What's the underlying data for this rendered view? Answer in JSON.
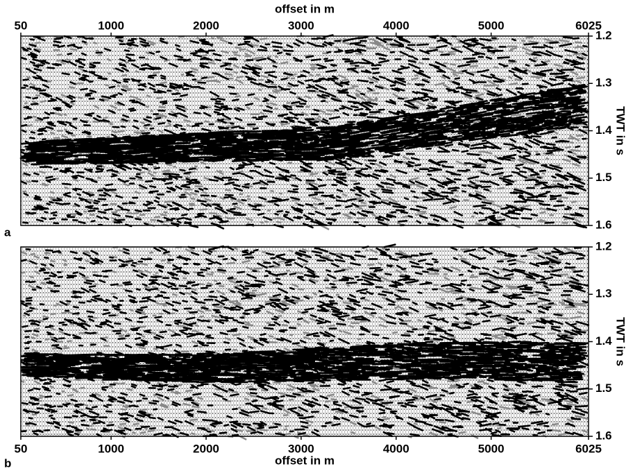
{
  "chart_data": [
    {
      "type": "seismic",
      "panel_label": "a",
      "xlabel": "offset in m",
      "ylabel": "TWT in s",
      "x_axis_position": "top",
      "xlim": [
        50,
        6025
      ],
      "xticks": [
        50,
        1000,
        2000,
        3000,
        4000,
        5000,
        6025
      ],
      "ylim": [
        1.2,
        1.6
      ],
      "y_reversed": true,
      "yticks": [
        1.2,
        1.3,
        1.4,
        1.5,
        1.6
      ]
    },
    {
      "type": "seismic",
      "panel_label": "b",
      "xlabel": "offset in m",
      "ylabel": "TWT in s",
      "x_axis_position": "bottom",
      "xlim": [
        50,
        6025
      ],
      "xticks": [
        50,
        1000,
        2000,
        3000,
        4000,
        5000,
        6025
      ],
      "ylim": [
        1.2,
        1.6
      ],
      "y_reversed": true,
      "yticks": [
        1.2,
        1.3,
        1.4,
        1.5,
        1.6
      ]
    }
  ]
}
